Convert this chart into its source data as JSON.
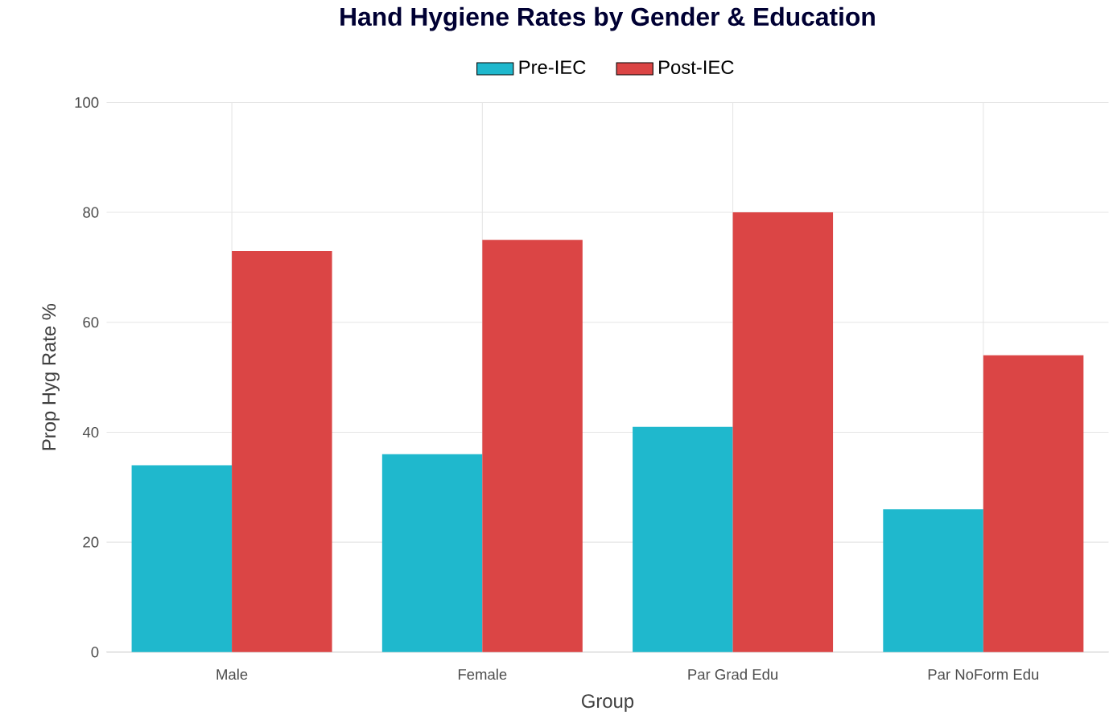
{
  "chart_data": {
    "type": "bar",
    "title": "Hand Hygiene Rates by Gender & Education",
    "xlabel": "Group",
    "ylabel": "Prop Hyg Rate %",
    "categories": [
      "Male",
      "Female",
      "Par Grad Edu",
      "Par NoForm Edu"
    ],
    "series": [
      {
        "name": "Pre-IEC",
        "color": "#1fb8cd",
        "values": [
          34,
          36,
          41,
          26
        ]
      },
      {
        "name": "Post-IEC",
        "color": "#db4545",
        "values": [
          73,
          75,
          80,
          54
        ]
      }
    ],
    "ylim": [
      0,
      100
    ],
    "yticks": [
      0,
      20,
      40,
      60,
      80,
      100
    ],
    "grid": true,
    "legend": "top"
  }
}
